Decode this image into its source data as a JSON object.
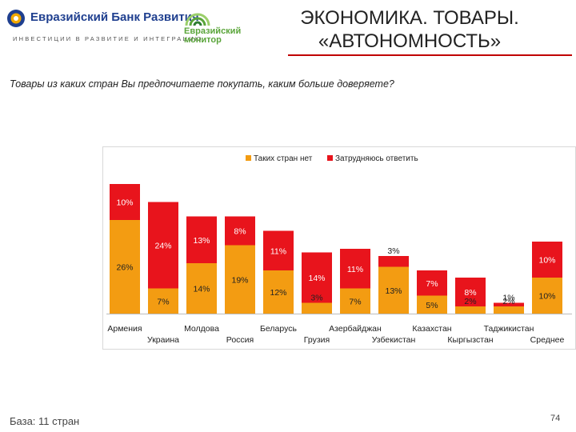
{
  "header": {
    "bank_logo": {
      "name": "Евразийский Банк Развития",
      "tagline": "ИНВЕСТИЦИИ В РАЗВИТИЕ И ИНТЕГРАЦИЮ"
    },
    "monitor_logo": {
      "line1": "Евразийский",
      "line2": "монитор"
    },
    "title_line1": "ЭКОНОМИКА. ТОВАРЫ.",
    "title_line2": "«АВТОНОМНОСТЬ»"
  },
  "question": "Товары из каких стран Вы предпочитаете покупать, каким больше доверяете?",
  "footer": {
    "base": "База: 11 стран",
    "page": "74"
  },
  "colors": {
    "orange": "#f39c12",
    "red": "#e8141c",
    "accent_line": "#c00000"
  },
  "chart_data": {
    "type": "bar",
    "stacked": true,
    "categories": [
      "Армения",
      "Украина",
      "Молдова",
      "Россия",
      "Беларусь",
      "Грузия",
      "Азербайджан",
      "Узбекистан",
      "Казахстан",
      "Кыргызстан",
      "Таджикистан",
      "Среднее"
    ],
    "series": [
      {
        "name": "Таких стран нет",
        "color": "#f39c12",
        "values": [
          26,
          7,
          14,
          19,
          12,
          3,
          7,
          13,
          5,
          2,
          2,
          10
        ],
        "labels": [
          "26%",
          "7%",
          "14%",
          "19%",
          "12%",
          "3%",
          "7%",
          "13%",
          "5%",
          "2%",
          "2%",
          "10%"
        ]
      },
      {
        "name": "Затрудняюсь ответить",
        "color": "#e8141c",
        "values": [
          10,
          24,
          13,
          8,
          11,
          14,
          11,
          3,
          7,
          8,
          1,
          10
        ],
        "labels": [
          "10%",
          "24%",
          "13%",
          "8%",
          "11%",
          "14%",
          "11%",
          "3%",
          "7%",
          "8%",
          "1%",
          "10%"
        ]
      }
    ],
    "legend_position": "top",
    "grid": false,
    "ylim": [
      0,
      40
    ]
  }
}
